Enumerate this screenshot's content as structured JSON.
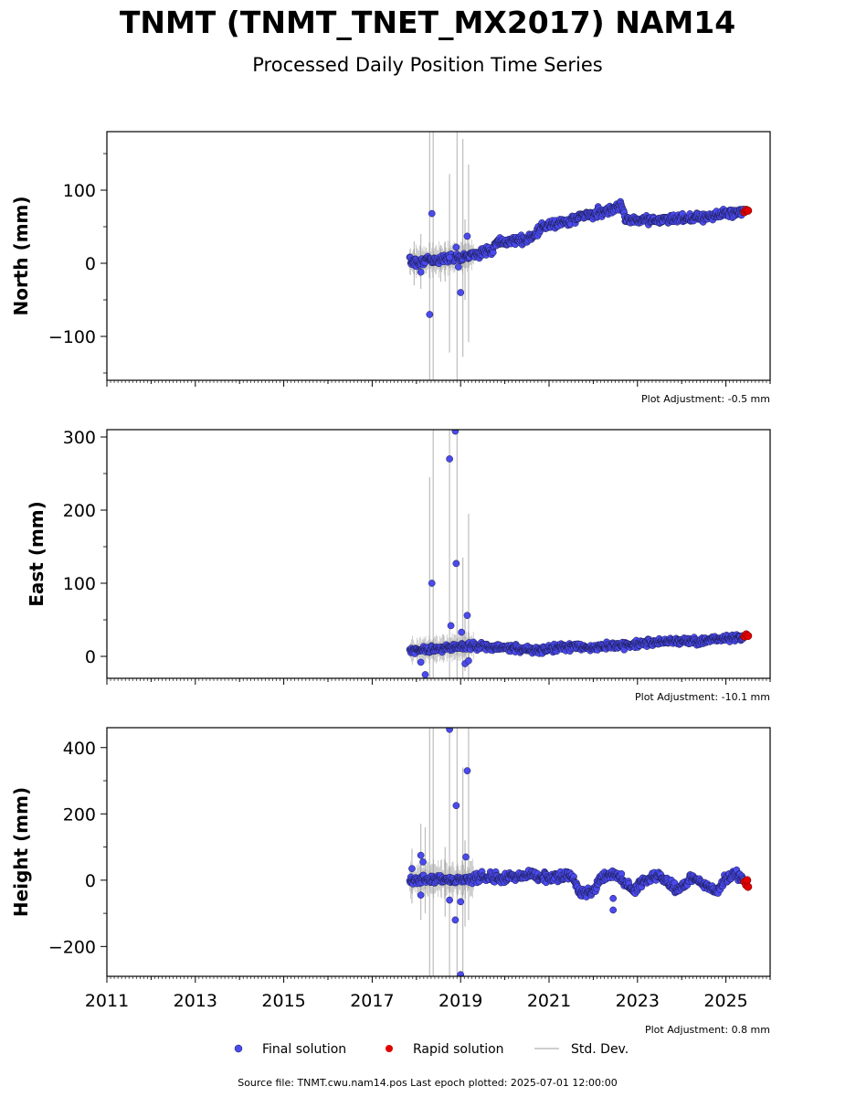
{
  "title": "TNMT (TNMT_TNET_MX2017) NAM14",
  "subtitle": "Processed Daily Position Time Series",
  "legend": {
    "final": "Final solution",
    "rapid": "Rapid solution",
    "std": "Std. Dev."
  },
  "source_line": "Source file: TNMT.cwu.nam14.pos  Last epoch plotted: 2025-07-01 12:00:00",
  "colors": {
    "final": "#4a4aee",
    "final_edge": "#1a1a4a",
    "rapid": "#e00000",
    "std": "#bdbdbd"
  },
  "chart_data": [
    {
      "type": "scatter",
      "ylabel": "North (mm)",
      "xlim": [
        2011.0,
        2026.0
      ],
      "ylim": [
        -160,
        180
      ],
      "yticks": [
        -100,
        0,
        100
      ],
      "yticklabels": [
        "−100",
        "0",
        "100"
      ],
      "adjustment": "Plot Adjustment: -0.5 mm",
      "trend": [
        [
          2017.85,
          2
        ],
        [
          2018.5,
          5
        ],
        [
          2019.2,
          11
        ],
        [
          2019.7,
          18
        ],
        [
          2019.8,
          28
        ],
        [
          2020.5,
          33
        ],
        [
          2020.7,
          40
        ],
        [
          2020.85,
          50
        ],
        [
          2021.4,
          57
        ],
        [
          2021.7,
          64
        ],
        [
          2022.3,
          72
        ],
        [
          2022.65,
          80
        ],
        [
          2022.72,
          60
        ],
        [
          2023.5,
          59
        ],
        [
          2024.5,
          64
        ],
        [
          2025.45,
          71
        ]
      ],
      "scatter": 5,
      "outliers": [
        [
          2018.35,
          68
        ],
        [
          2018.3,
          -70
        ],
        [
          2018.9,
          22
        ],
        [
          2019.0,
          -40
        ],
        [
          2019.15,
          37
        ],
        [
          2018.1,
          -12
        ],
        [
          2018.95,
          -5
        ],
        [
          2018.75,
          8
        ]
      ],
      "errorbars": [
        [
          2018.3,
          180,
          -160
        ],
        [
          2018.38,
          180,
          -160
        ],
        [
          2018.92,
          180,
          -160
        ],
        [
          2018.75,
          122,
          -122
        ],
        [
          2019.05,
          170,
          -128
        ],
        [
          2019.18,
          135,
          -108
        ],
        [
          2017.95,
          30,
          -30
        ],
        [
          2018.1,
          40,
          -35
        ],
        [
          2018.55,
          25,
          -25
        ],
        [
          2018.65,
          30,
          -25
        ],
        [
          2019.1,
          60,
          -50
        ]
      ],
      "rapid": [
        [
          2025.42,
          70
        ],
        [
          2025.46,
          73
        ],
        [
          2025.5,
          72
        ]
      ]
    },
    {
      "type": "scatter",
      "ylabel": "East (mm)",
      "xlim": [
        2011.0,
        2026.0
      ],
      "ylim": [
        -30,
        310
      ],
      "yticks": [
        0,
        100,
        200,
        300
      ],
      "yticklabels": [
        "0",
        "100",
        "200",
        "300"
      ],
      "adjustment": "Plot Adjustment: -10.1 mm",
      "trend": [
        [
          2017.85,
          8
        ],
        [
          2018.5,
          10
        ],
        [
          2019.2,
          15
        ],
        [
          2019.7,
          13
        ],
        [
          2020.3,
          10
        ],
        [
          2020.8,
          9
        ],
        [
          2021.5,
          14
        ],
        [
          2022.0,
          12
        ],
        [
          2022.6,
          15
        ],
        [
          2023.5,
          20
        ],
        [
          2024.5,
          22
        ],
        [
          2025.45,
          27
        ]
      ],
      "scatter": 4,
      "outliers": [
        [
          2018.35,
          100
        ],
        [
          2018.75,
          270
        ],
        [
          2018.88,
          308
        ],
        [
          2018.9,
          127
        ],
        [
          2018.78,
          42
        ],
        [
          2019.02,
          33
        ],
        [
          2019.15,
          56
        ],
        [
          2018.2,
          -25
        ],
        [
          2018.1,
          -8
        ],
        [
          2019.1,
          -10
        ],
        [
          2019.18,
          -6
        ]
      ],
      "errorbars": [
        [
          2018.3,
          245,
          -30
        ],
        [
          2018.38,
          310,
          -30
        ],
        [
          2018.92,
          310,
          -30
        ],
        [
          2018.75,
          310,
          -30
        ],
        [
          2019.05,
          135,
          -30
        ],
        [
          2019.18,
          195,
          -30
        ],
        [
          2018.6,
          30,
          -5
        ],
        [
          2019.1,
          60,
          -20
        ]
      ],
      "rapid": [
        [
          2025.42,
          27
        ],
        [
          2025.46,
          30
        ],
        [
          2025.5,
          28
        ]
      ]
    },
    {
      "type": "scatter",
      "ylabel": "Height (mm)",
      "xlim": [
        2011.0,
        2026.0
      ],
      "ylim": [
        -290,
        460
      ],
      "yticks": [
        -200,
        0,
        200,
        400
      ],
      "yticklabels": [
        "−200",
        "0",
        "200",
        "400"
      ],
      "adjustment": "Plot Adjustment: 0.8 mm",
      "xticklabels": [
        "2011",
        "2013",
        "2015",
        "2017",
        "2019",
        "2021",
        "2023",
        "2025"
      ],
      "trend": [
        [
          2017.85,
          0
        ],
        [
          2018.5,
          5
        ],
        [
          2019.0,
          0
        ],
        [
          2019.5,
          10
        ],
        [
          2020.0,
          5
        ],
        [
          2020.5,
          18
        ],
        [
          2021.0,
          8
        ],
        [
          2021.5,
          15
        ],
        [
          2021.7,
          -40
        ],
        [
          2022.0,
          -30
        ],
        [
          2022.2,
          10
        ],
        [
          2022.5,
          20
        ],
        [
          2022.9,
          -30
        ],
        [
          2023.2,
          0
        ],
        [
          2023.5,
          15
        ],
        [
          2023.9,
          -30
        ],
        [
          2024.3,
          10
        ],
        [
          2024.6,
          -20
        ],
        [
          2024.8,
          -40
        ],
        [
          2025.0,
          10
        ],
        [
          2025.2,
          20
        ],
        [
          2025.45,
          -5
        ]
      ],
      "scatter": 12,
      "outliers": [
        [
          2018.75,
          455
        ],
        [
          2018.9,
          225
        ],
        [
          2019.15,
          330
        ],
        [
          2018.1,
          75
        ],
        [
          2018.15,
          55
        ],
        [
          2019.12,
          70
        ],
        [
          2018.1,
          -45
        ],
        [
          2018.75,
          -60
        ],
        [
          2018.88,
          -120
        ],
        [
          2019.0,
          -65
        ],
        [
          2019.0,
          -285
        ],
        [
          2022.45,
          -90
        ],
        [
          2022.45,
          -55
        ],
        [
          2017.9,
          35
        ]
      ],
      "errorbars": [
        [
          2017.9,
          95,
          -70
        ],
        [
          2018.1,
          170,
          -120
        ],
        [
          2018.2,
          160,
          -100
        ],
        [
          2018.3,
          460,
          -290
        ],
        [
          2018.38,
          460,
          -290
        ],
        [
          2018.65,
          100,
          -110
        ],
        [
          2018.75,
          460,
          -290
        ],
        [
          2018.92,
          460,
          -290
        ],
        [
          2019.05,
          340,
          -290
        ],
        [
          2019.18,
          460,
          -120
        ],
        [
          2019.1,
          120,
          -140
        ]
      ],
      "rapid": [
        [
          2025.42,
          -5
        ],
        [
          2025.46,
          -15
        ],
        [
          2025.5,
          -20
        ],
        [
          2025.48,
          0
        ]
      ]
    }
  ]
}
